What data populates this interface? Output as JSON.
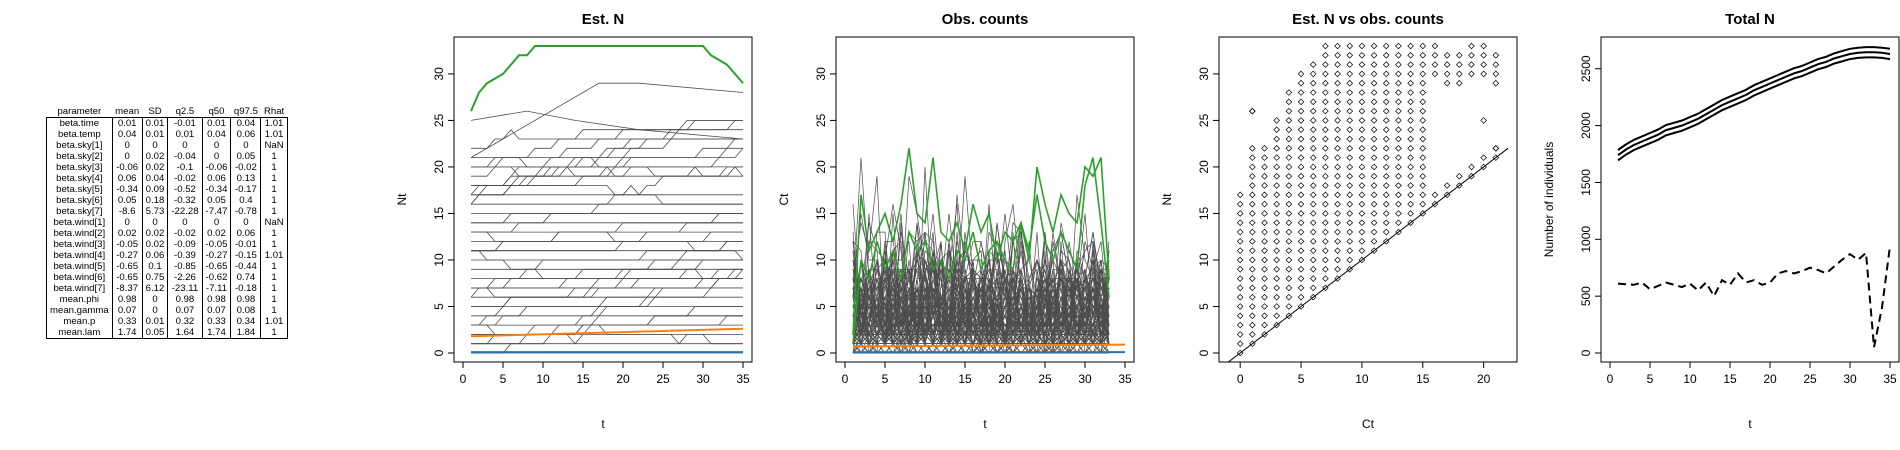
{
  "table": {
    "headers": [
      "parameter",
      "mean",
      "SD",
      "q2.5",
      "q50",
      "q97.5",
      "Rhat"
    ],
    "rows": [
      [
        "beta.time",
        "0.01",
        "0.01",
        "-0.01",
        "0.01",
        "0.04",
        "1.01"
      ],
      [
        "beta.temp",
        "0.04",
        "0.01",
        "0.01",
        "0.04",
        "0.06",
        "1.01"
      ],
      [
        "beta.sky[1]",
        "0",
        "0",
        "0",
        "0",
        "0",
        "NaN"
      ],
      [
        "beta.sky[2]",
        "0",
        "0.02",
        "-0.04",
        "0",
        "0.05",
        "1"
      ],
      [
        "beta.sky[3]",
        "-0.06",
        "0.02",
        "-0.1",
        "-0.06",
        "-0.02",
        "1"
      ],
      [
        "beta.sky[4]",
        "0.06",
        "0.04",
        "-0.02",
        "0.06",
        "0.13",
        "1"
      ],
      [
        "beta.sky[5]",
        "-0.34",
        "0.09",
        "-0.52",
        "-0.34",
        "-0.17",
        "1"
      ],
      [
        "beta.sky[6]",
        "0.05",
        "0.18",
        "-0.32",
        "0.05",
        "0.4",
        "1"
      ],
      [
        "beta.sky[7]",
        "-8.6",
        "5.73",
        "-22.28",
        "-7.47",
        "-0.78",
        "1"
      ],
      [
        "beta.wind[1]",
        "0",
        "0",
        "0",
        "0",
        "0",
        "NaN"
      ],
      [
        "beta.wind[2]",
        "0.02",
        "0.02",
        "-0.02",
        "0.02",
        "0.06",
        "1"
      ],
      [
        "beta.wind[3]",
        "-0.05",
        "0.02",
        "-0.09",
        "-0.05",
        "-0.01",
        "1"
      ],
      [
        "beta.wind[4]",
        "-0.27",
        "0.06",
        "-0.39",
        "-0.27",
        "-0.15",
        "1.01"
      ],
      [
        "beta.wind[5]",
        "-0.65",
        "0.1",
        "-0.85",
        "-0.65",
        "-0.44",
        "1"
      ],
      [
        "beta.wind[6]",
        "-0.65",
        "0.75",
        "-2.26",
        "-0.62",
        "0.74",
        "1"
      ],
      [
        "beta.wind[7]",
        "-8.37",
        "6.12",
        "-23.11",
        "-7.11",
        "-0.18",
        "1"
      ],
      [
        "mean.phi",
        "0.98",
        "0",
        "0.98",
        "0.98",
        "0.98",
        "1"
      ],
      [
        "mean.gamma",
        "0.07",
        "0",
        "0.07",
        "0.07",
        "0.08",
        "1"
      ],
      [
        "mean.p",
        "0.33",
        "0.01",
        "0.32",
        "0.33",
        "0.34",
        "1.01"
      ],
      [
        "mean.lam",
        "1.74",
        "0.05",
        "1.64",
        "1.74",
        "1.84",
        "1"
      ]
    ]
  },
  "colors": {
    "green": "#2ca02c",
    "orange": "#ff7f0e",
    "blue": "#1f77b4",
    "grey": "#4d4d4d",
    "black": "#000000"
  },
  "chart_data": [
    {
      "type": "line",
      "title": "Est. N",
      "xlabel": "t",
      "ylabel": "Nt",
      "xlim": [
        0,
        35
      ],
      "ylim": [
        0,
        33
      ],
      "xticks": [
        0,
        5,
        10,
        15,
        20,
        25,
        30,
        35
      ],
      "yticks": [
        0,
        5,
        10,
        15,
        20,
        25,
        30
      ],
      "x": [
        1,
        35
      ],
      "series": [
        {
          "color": "green",
          "x": [
            1,
            2,
            3,
            5,
            6,
            7,
            8,
            9,
            28,
            29,
            30,
            31,
            33,
            35
          ],
          "values": [
            26,
            28,
            29,
            30,
            31,
            32,
            32,
            33,
            33,
            33,
            33,
            32,
            31,
            29
          ]
        },
        {
          "color": "orange",
          "x": [
            1,
            35
          ],
          "values": [
            1.8,
            2.6
          ]
        },
        {
          "color": "blue",
          "x": [
            1,
            35
          ],
          "values": [
            0.1,
            0.1
          ]
        }
      ],
      "background_series_color": "grey",
      "background_series_note": "individual site trajectories mostly flat at integer levels 0-25 with some rising lines"
    },
    {
      "type": "line",
      "title": "Obs. counts",
      "xlabel": "t",
      "ylabel": "Ct",
      "xlim": [
        0,
        35
      ],
      "ylim": [
        0,
        33
      ],
      "xticks": [
        0,
        5,
        10,
        15,
        20,
        25,
        30,
        35
      ],
      "yticks": [
        0,
        5,
        10,
        15,
        20,
        25,
        30
      ],
      "series": [
        {
          "color": "green",
          "x": [
            1,
            2,
            3,
            4,
            5,
            6,
            7,
            8,
            9,
            10,
            11,
            12,
            13,
            14,
            15,
            16,
            17,
            18,
            19,
            20,
            21,
            22,
            23,
            24,
            25,
            26,
            27,
            28,
            29,
            30,
            31,
            32,
            33
          ],
          "values": [
            2,
            17,
            11,
            13,
            15,
            12,
            16,
            22,
            15,
            14,
            21,
            13,
            12,
            14,
            11,
            16,
            13,
            15,
            10,
            13,
            12,
            14,
            10,
            20,
            16,
            13,
            17,
            15,
            14,
            20,
            19,
            21,
            8
          ]
        },
        {
          "color": "green",
          "x": [
            1,
            2,
            3,
            4,
            5,
            6,
            7,
            8,
            9,
            10,
            11,
            12,
            13,
            14,
            15,
            16,
            17,
            18,
            19,
            20,
            21,
            22,
            23,
            24,
            25,
            26,
            27,
            28,
            29,
            30,
            31,
            32,
            33
          ],
          "values": [
            1,
            10,
            8,
            12,
            9,
            11,
            8,
            13,
            11,
            12,
            9,
            10,
            8,
            11,
            10,
            13,
            9,
            11,
            12,
            10,
            9,
            14,
            11,
            17,
            12,
            10,
            13,
            11,
            9,
            18,
            21,
            14,
            6
          ]
        },
        {
          "color": "orange",
          "x": [
            1,
            35
          ],
          "values": [
            0.7,
            0.9
          ]
        },
        {
          "color": "blue",
          "x": [
            1,
            35
          ],
          "values": [
            0.1,
            0.1
          ]
        }
      ],
      "background_series_color": "grey",
      "background_series_note": "dense grey count trajectories mostly 0-10 with some up to 21"
    },
    {
      "type": "scatter",
      "title": "Est. N vs obs. counts",
      "xlabel": "Ct",
      "ylabel": "Nt",
      "xlim": [
        -1,
        22
      ],
      "ylim": [
        0,
        33
      ],
      "xticks": [
        0,
        5,
        10,
        15,
        20
      ],
      "yticks": [
        0,
        5,
        10,
        15,
        20,
        25,
        30
      ],
      "points_note": "open diamonds at integer (Ct, Nt) pairs with Nt >= Ct",
      "reference_line": {
        "intercept": 0,
        "slope": 1
      },
      "upper_envelope": {
        "x": [
          0,
          1,
          2,
          3,
          4,
          5,
          6,
          7,
          8,
          9,
          10,
          11,
          12,
          13,
          14,
          15,
          16,
          17,
          18,
          19,
          20,
          21
        ],
        "values": [
          17,
          26,
          22,
          25,
          28,
          30,
          31,
          33,
          33,
          33,
          33,
          33,
          33,
          33,
          33,
          33,
          33,
          32,
          32,
          33,
          33,
          32
        ]
      },
      "isolated_points": [
        {
          "x": 1,
          "y": 26
        },
        {
          "x": 20,
          "y": 25
        },
        {
          "x": 21,
          "y": 22
        }
      ]
    },
    {
      "type": "line",
      "title": "Total N",
      "xlabel": "t",
      "ylabel": "Number of individuals",
      "xlim": [
        0,
        35
      ],
      "ylim": [
        0,
        2700
      ],
      "xticks": [
        0,
        5,
        10,
        15,
        20,
        25,
        30,
        35
      ],
      "yticks": [
        0,
        500,
        1000,
        1500,
        2000,
        2500
      ],
      "series": [
        {
          "style": "solid",
          "x": [
            1,
            2,
            3,
            4,
            5,
            6,
            7,
            8,
            9,
            10,
            11,
            12,
            13,
            14,
            15,
            16,
            17,
            18,
            19,
            20,
            21,
            22,
            23,
            24,
            25,
            26,
            27,
            28,
            29,
            30,
            31,
            32,
            33,
            34,
            35
          ],
          "values": [
            1740,
            1790,
            1830,
            1860,
            1890,
            1920,
            1960,
            1980,
            2000,
            2030,
            2060,
            2100,
            2140,
            2180,
            2210,
            2240,
            2270,
            2310,
            2340,
            2370,
            2400,
            2430,
            2460,
            2480,
            2510,
            2540,
            2560,
            2590,
            2610,
            2630,
            2640,
            2645,
            2645,
            2640,
            2630
          ]
        },
        {
          "style": "dashed",
          "x": [
            1,
            3,
            4,
            5,
            6,
            7,
            8,
            9,
            10,
            11,
            12,
            13,
            14,
            15,
            16,
            17,
            18,
            19,
            20,
            21,
            22,
            23,
            24,
            25,
            26,
            27,
            28,
            29,
            30,
            31,
            32,
            33,
            34,
            35
          ],
          "values": [
            610,
            600,
            620,
            560,
            590,
            620,
            600,
            580,
            610,
            550,
            620,
            500,
            640,
            600,
            700,
            620,
            640,
            600,
            620,
            700,
            720,
            700,
            720,
            750,
            730,
            700,
            760,
            820,
            870,
            820,
            880,
            50,
            400,
            940
          ]
        }
      ]
    }
  ]
}
